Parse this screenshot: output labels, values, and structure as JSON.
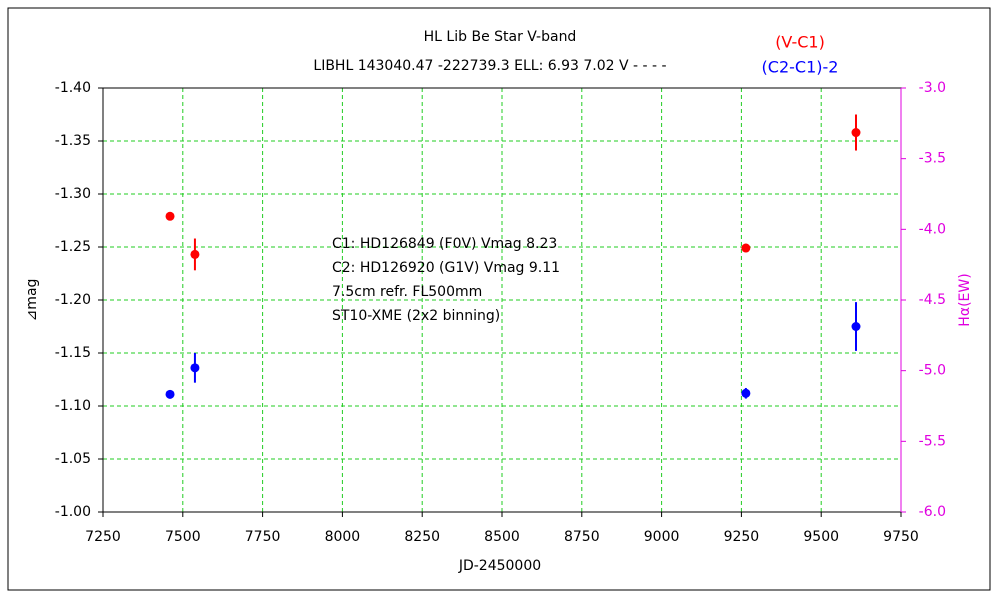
{
  "chart_data": {
    "type": "scatter",
    "title": "HL Lib    Be Star    V-band",
    "subtitle": "LIBHL 143040.47 -222739.3 ELL: 6.93 7.02 V - - - -",
    "x_label": "JD-2450000",
    "y_label": "⊿mag",
    "y2_label": "Hα(EW)",
    "annotations": [
      "C1: HD126849 (F0V) Vmag 8.23",
      "C2: HD126920 (G1V) Vmag 9.11",
      "7.5cm refr. FL500mm",
      "ST10-XME (2x2 binning)"
    ],
    "xlim": [
      7250,
      9750
    ],
    "xticks": [
      7250,
      7500,
      7750,
      8000,
      8250,
      8500,
      8750,
      9000,
      9250,
      9500,
      9750
    ],
    "ylim": [
      -1.0,
      -1.4
    ],
    "yticks": [
      {
        "value": -1.4,
        "label": "-1.40"
      },
      {
        "value": -1.35,
        "label": "-1.35"
      },
      {
        "value": -1.3,
        "label": "-1.30"
      },
      {
        "value": -1.25,
        "label": "-1.25"
      },
      {
        "value": -1.2,
        "label": "-1.20"
      },
      {
        "value": -1.15,
        "label": "-1.15"
      },
      {
        "value": -1.1,
        "label": "-1.10"
      },
      {
        "value": -1.05,
        "label": "-1.05"
      },
      {
        "value": -1.0,
        "label": "-1.00"
      }
    ],
    "y2lim": [
      -6.0,
      -3.0
    ],
    "y2ticks": [
      {
        "value": -3.0,
        "label": "-3.0"
      },
      {
        "value": -3.5,
        "label": "-3.5"
      },
      {
        "value": -4.0,
        "label": "-4.0"
      },
      {
        "value": -4.5,
        "label": "-4.5"
      },
      {
        "value": -5.0,
        "label": "-5.0"
      },
      {
        "value": -5.5,
        "label": "-5.5"
      },
      {
        "value": -6.0,
        "label": "-6.0"
      }
    ],
    "y2_color": "#e000e0",
    "grid": true,
    "grid_color": "#22cc22",
    "series": [
      {
        "name": "(V-C1)",
        "color": "#ff0000",
        "x": [
          7460,
          7538,
          9264,
          9609
        ],
        "values": [
          -1.279,
          -1.243,
          -1.249,
          -1.358
        ],
        "errors": [
          0.003,
          0.015,
          0.004,
          0.017
        ]
      },
      {
        "name": "(C2-C1)-2",
        "color": "#0000ff",
        "x": [
          7460,
          7538,
          9264,
          9609
        ],
        "values": [
          -1.111,
          -1.136,
          -1.112,
          -1.175
        ],
        "errors": [
          0.004,
          0.014,
          0.005,
          0.023
        ]
      }
    ]
  }
}
